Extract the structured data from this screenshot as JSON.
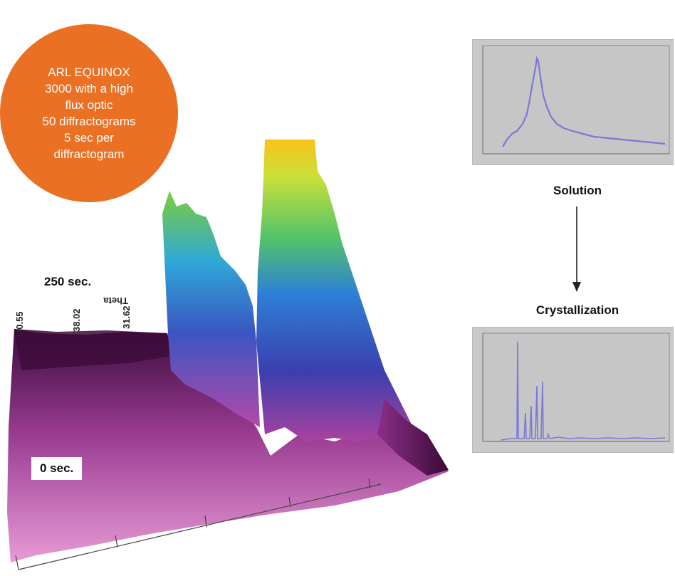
{
  "badge": {
    "lines": [
      "ARL EQUINOX",
      "3000 with a high",
      "flux optic",
      "50 diffractograms",
      "5 sec per",
      "diffractogram"
    ],
    "color": "#ea7024"
  },
  "time_labels": {
    "top": "250 sec.",
    "bottom": "0 sec."
  },
  "axis_tick_labels": [
    "40.55",
    "38.02",
    "31.62"
  ],
  "axis_name": "Theta",
  "stages": {
    "from": "Solution",
    "to": "Crystallization"
  },
  "colors": {
    "panel_bg": "#c9c9c9",
    "trace": "#7b78d8",
    "surface_low": "#4a0e45",
    "surface_mid": "#2d7fd6",
    "surface_high": "#f7c51c"
  }
}
